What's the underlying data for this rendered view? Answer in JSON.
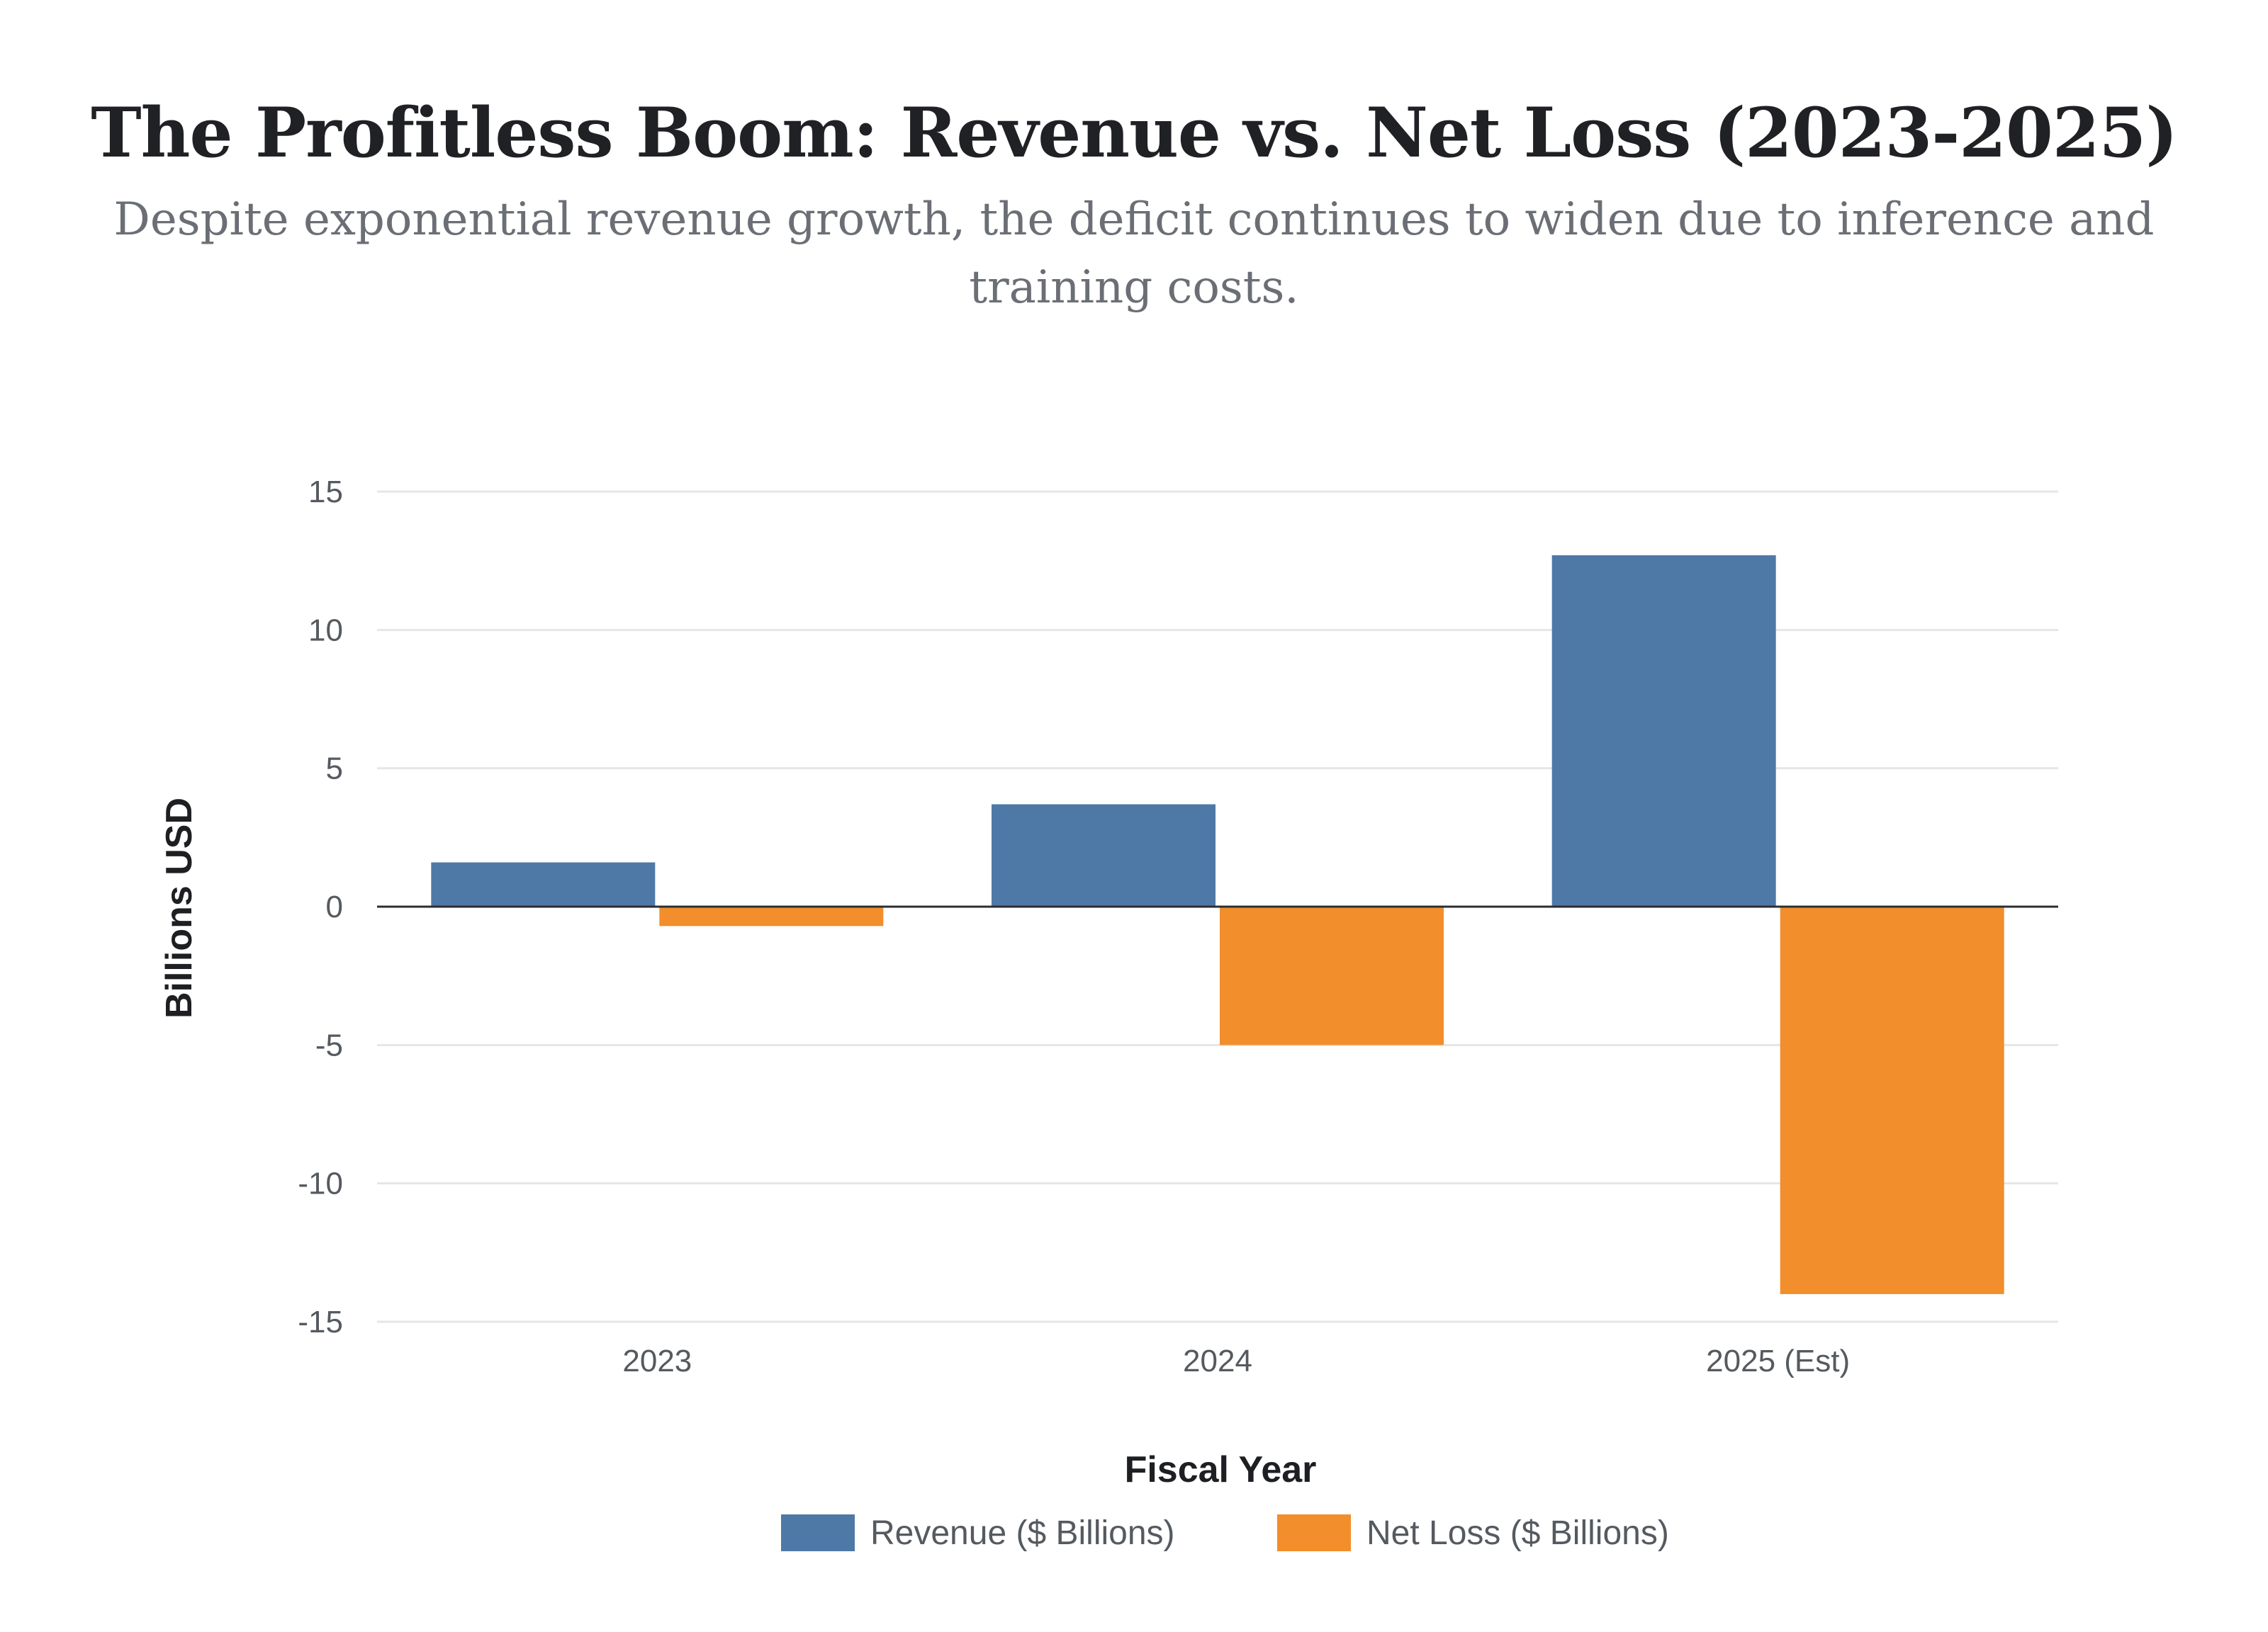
{
  "title": "The Profitless Boom: Revenue vs. Net Loss (2023-2025)",
  "subtitle": "Despite exponential revenue growth, the deficit continues to widen due to inference and training costs.",
  "chart_data": {
    "type": "bar",
    "title": "The Profitless Boom: Revenue vs. Net Loss (2023-2025)",
    "subtitle": "Despite exponential revenue growth, the deficit continues to widen due to inference and training costs.",
    "categories": [
      "2023",
      "2024",
      "2025 (Est)"
    ],
    "series": [
      {
        "name": "Revenue ($ Billions)",
        "color": "#4e79a7",
        "values": [
          1.6,
          3.7,
          12.7
        ]
      },
      {
        "name": "Net Loss ($ Billions)",
        "color": "#f28e2b",
        "values": [
          -0.7,
          -5.0,
          -14.0
        ]
      }
    ],
    "xlabel": "Fiscal Year",
    "ylabel": "Billions USD",
    "ylim": [
      -15,
      15
    ],
    "yticks": [
      15,
      10,
      5,
      0,
      -5,
      -10,
      -15
    ],
    "grid": true,
    "legend": "bottom-center"
  }
}
